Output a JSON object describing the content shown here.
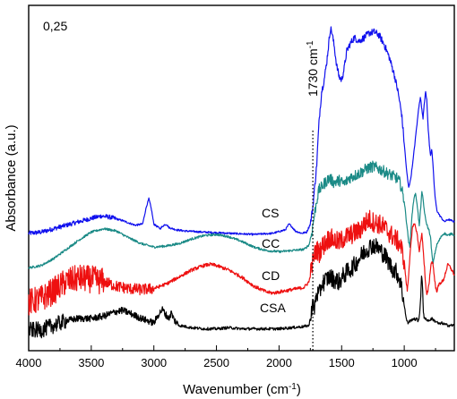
{
  "chart_data": {
    "type": "line",
    "xlabel": "Wavenumber (cm",
    "xlabel_sup": "-1",
    "xlabel_suffix": ")",
    "ylabel": "Absorbance (a.u.)",
    "xlim": [
      4000,
      600
    ],
    "x_reversed": true,
    "x_ticks": [
      "4000",
      "3500",
      "3000",
      "2500",
      "2000",
      "1500",
      "1000"
    ],
    "scale_label": "0,25",
    "annotation": {
      "text": "1730 cm",
      "sup": "-1",
      "x": 1730
    },
    "series": [
      {
        "name": "CS",
        "color": "#1010ee",
        "points": [
          [
            4000,
            0.72
          ],
          [
            3900,
            0.73
          ],
          [
            3800,
            0.76
          ],
          [
            3700,
            0.79
          ],
          [
            3600,
            0.82
          ],
          [
            3500,
            0.85
          ],
          [
            3420,
            0.87
          ],
          [
            3350,
            0.86
          ],
          [
            3250,
            0.83
          ],
          [
            3150,
            0.79
          ],
          [
            3090,
            0.8
          ],
          [
            3060,
            0.95
          ],
          [
            3040,
            1.02
          ],
          [
            3020,
            0.93
          ],
          [
            3000,
            0.8
          ],
          [
            2950,
            0.76
          ],
          [
            2920,
            0.79
          ],
          [
            2900,
            0.8
          ],
          [
            2880,
            0.77
          ],
          [
            2820,
            0.75
          ],
          [
            2750,
            0.74
          ],
          [
            2600,
            0.73
          ],
          [
            2400,
            0.72
          ],
          [
            2200,
            0.71
          ],
          [
            2050,
            0.72
          ],
          [
            1950,
            0.75
          ],
          [
            1920,
            0.8
          ],
          [
            1900,
            0.78
          ],
          [
            1870,
            0.74
          ],
          [
            1820,
            0.72
          ],
          [
            1780,
            0.73
          ],
          [
            1750,
            0.8
          ],
          [
            1730,
            0.95
          ],
          [
            1700,
            1.3
          ],
          [
            1680,
            1.7
          ],
          [
            1660,
            1.95
          ],
          [
            1640,
            2.05
          ],
          [
            1620,
            2.2
          ],
          [
            1600,
            2.4
          ],
          [
            1590,
            2.5
          ],
          [
            1580,
            2.48
          ],
          [
            1560,
            2.35
          ],
          [
            1540,
            2.18
          ],
          [
            1520,
            2.08
          ],
          [
            1500,
            2.05
          ],
          [
            1480,
            2.15
          ],
          [
            1460,
            2.3
          ],
          [
            1440,
            2.35
          ],
          [
            1400,
            2.42
          ],
          [
            1360,
            2.39
          ],
          [
            1320,
            2.42
          ],
          [
            1280,
            2.46
          ],
          [
            1240,
            2.47
          ],
          [
            1200,
            2.44
          ],
          [
            1160,
            2.36
          ],
          [
            1120,
            2.25
          ],
          [
            1080,
            2.1
          ],
          [
            1050,
            1.95
          ],
          [
            1020,
            1.75
          ],
          [
            1000,
            1.5
          ],
          [
            980,
            1.25
          ],
          [
            965,
            1.12
          ],
          [
            950,
            1.18
          ],
          [
            930,
            1.35
          ],
          [
            910,
            1.55
          ],
          [
            890,
            1.75
          ],
          [
            880,
            1.85
          ],
          [
            870,
            1.9
          ],
          [
            860,
            1.8
          ],
          [
            850,
            1.72
          ],
          [
            840,
            1.85
          ],
          [
            830,
            1.95
          ],
          [
            820,
            1.88
          ],
          [
            810,
            1.65
          ],
          [
            800,
            1.5
          ],
          [
            790,
            1.4
          ],
          [
            780,
            1.45
          ],
          [
            770,
            1.3
          ],
          [
            755,
            1.05
          ],
          [
            740,
            0.92
          ],
          [
            720,
            0.88
          ],
          [
            700,
            0.85
          ],
          [
            680,
            0.82
          ],
          [
            650,
            0.84
          ],
          [
            620,
            0.83
          ],
          [
            600,
            0.82
          ]
        ]
      },
      {
        "name": "CC",
        "color": "#1a8a86",
        "points": [
          [
            4000,
            0.42
          ],
          [
            3900,
            0.44
          ],
          [
            3800,
            0.5
          ],
          [
            3700,
            0.58
          ],
          [
            3600,
            0.66
          ],
          [
            3500,
            0.73
          ],
          [
            3400,
            0.76
          ],
          [
            3300,
            0.74
          ],
          [
            3200,
            0.68
          ],
          [
            3100,
            0.63
          ],
          [
            3000,
            0.6
          ],
          [
            2900,
            0.61
          ],
          [
            2800,
            0.63
          ],
          [
            2700,
            0.67
          ],
          [
            2600,
            0.7
          ],
          [
            2500,
            0.71
          ],
          [
            2400,
            0.69
          ],
          [
            2300,
            0.65
          ],
          [
            2200,
            0.6
          ],
          [
            2100,
            0.57
          ],
          [
            2000,
            0.56
          ],
          [
            1900,
            0.57
          ],
          [
            1800,
            0.58
          ],
          [
            1760,
            0.62
          ],
          [
            1740,
            0.72
          ],
          [
            1720,
            0.86
          ],
          [
            1700,
            1.0
          ],
          [
            1680,
            1.1
          ],
          [
            1660,
            1.12
          ],
          [
            1640,
            1.15
          ],
          [
            1600,
            1.2
          ],
          [
            1560,
            1.16
          ],
          [
            1520,
            1.18
          ],
          [
            1480,
            1.15
          ],
          [
            1440,
            1.2
          ],
          [
            1400,
            1.22
          ],
          [
            1360,
            1.24
          ],
          [
            1300,
            1.28
          ],
          [
            1250,
            1.3
          ],
          [
            1200,
            1.28
          ],
          [
            1150,
            1.25
          ],
          [
            1100,
            1.22
          ],
          [
            1060,
            1.2
          ],
          [
            1030,
            1.15
          ],
          [
            1000,
            1.0
          ],
          [
            980,
            0.8
          ],
          [
            965,
            0.65
          ],
          [
            955,
            0.6
          ],
          [
            945,
            0.78
          ],
          [
            930,
            0.96
          ],
          [
            920,
            1.04
          ],
          [
            910,
            1.06
          ],
          [
            900,
            1.0
          ],
          [
            890,
            0.9
          ],
          [
            880,
            0.78
          ],
          [
            870,
            0.92
          ],
          [
            860,
            1.08
          ],
          [
            850,
            1.02
          ],
          [
            840,
            0.92
          ],
          [
            830,
            0.84
          ],
          [
            815,
            0.78
          ],
          [
            800,
            0.74
          ],
          [
            790,
            0.68
          ],
          [
            780,
            0.55
          ],
          [
            770,
            0.45
          ],
          [
            760,
            0.52
          ],
          [
            740,
            0.62
          ],
          [
            720,
            0.66
          ],
          [
            700,
            0.7
          ],
          [
            680,
            0.72
          ],
          [
            650,
            0.7
          ],
          [
            620,
            0.72
          ],
          [
            600,
            0.7
          ]
        ]
      },
      {
        "name": "CD",
        "color": "#ee1010",
        "points": [
          [
            4000,
            0.12
          ],
          [
            3900,
            0.15
          ],
          [
            3800,
            0.22
          ],
          [
            3700,
            0.3
          ],
          [
            3600,
            0.33
          ],
          [
            3500,
            0.32
          ],
          [
            3400,
            0.3
          ],
          [
            3300,
            0.26
          ],
          [
            3200,
            0.24
          ],
          [
            3100,
            0.23
          ],
          [
            3000,
            0.24
          ],
          [
            2900,
            0.28
          ],
          [
            2800,
            0.34
          ],
          [
            2700,
            0.4
          ],
          [
            2600,
            0.44
          ],
          [
            2550,
            0.45
          ],
          [
            2500,
            0.44
          ],
          [
            2400,
            0.4
          ],
          [
            2300,
            0.34
          ],
          [
            2200,
            0.26
          ],
          [
            2100,
            0.21
          ],
          [
            2050,
            0.2
          ],
          [
            2000,
            0.21
          ],
          [
            1900,
            0.23
          ],
          [
            1800,
            0.25
          ],
          [
            1760,
            0.3
          ],
          [
            1740,
            0.42
          ],
          [
            1720,
            0.52
          ],
          [
            1700,
            0.58
          ],
          [
            1680,
            0.55
          ],
          [
            1660,
            0.6
          ],
          [
            1640,
            0.62
          ],
          [
            1600,
            0.68
          ],
          [
            1560,
            0.66
          ],
          [
            1520,
            0.64
          ],
          [
            1480,
            0.68
          ],
          [
            1440,
            0.7
          ],
          [
            1400,
            0.72
          ],
          [
            1360,
            0.74
          ],
          [
            1320,
            0.8
          ],
          [
            1280,
            0.84
          ],
          [
            1250,
            0.82
          ],
          [
            1200,
            0.8
          ],
          [
            1150,
            0.76
          ],
          [
            1100,
            0.7
          ],
          [
            1060,
            0.66
          ],
          [
            1030,
            0.62
          ],
          [
            1000,
            0.48
          ],
          [
            985,
            0.3
          ],
          [
            975,
            0.22
          ],
          [
            965,
            0.35
          ],
          [
            950,
            0.6
          ],
          [
            935,
            0.76
          ],
          [
            920,
            0.8
          ],
          [
            905,
            0.76
          ],
          [
            890,
            0.66
          ],
          [
            880,
            0.55
          ],
          [
            870,
            0.65
          ],
          [
            860,
            0.72
          ],
          [
            850,
            0.6
          ],
          [
            840,
            0.45
          ],
          [
            830,
            0.28
          ],
          [
            820,
            0.18
          ],
          [
            810,
            0.22
          ],
          [
            800,
            0.3
          ],
          [
            790,
            0.42
          ],
          [
            780,
            0.48
          ],
          [
            770,
            0.45
          ],
          [
            760,
            0.35
          ],
          [
            750,
            0.25
          ],
          [
            740,
            0.22
          ],
          [
            720,
            0.28
          ],
          [
            700,
            0.3
          ],
          [
            690,
            0.3
          ],
          [
            670,
            0.38
          ],
          [
            650,
            0.45
          ],
          [
            630,
            0.42
          ],
          [
            610,
            0.38
          ],
          [
            600,
            0.36
          ]
        ]
      },
      {
        "name": "CSA",
        "color": "#000000",
        "points": [
          [
            4000,
            -0.12
          ],
          [
            3900,
            -0.12
          ],
          [
            3800,
            -0.08
          ],
          [
            3700,
            -0.04
          ],
          [
            3600,
            -0.02
          ],
          [
            3500,
            -0.02
          ],
          [
            3400,
            0.0
          ],
          [
            3300,
            0.04
          ],
          [
            3250,
            0.05
          ],
          [
            3200,
            0.03
          ],
          [
            3100,
            -0.02
          ],
          [
            3000,
            -0.06
          ],
          [
            2960,
            0.02
          ],
          [
            2930,
            0.06
          ],
          [
            2910,
            0.02
          ],
          [
            2880,
            -0.02
          ],
          [
            2860,
            0.03
          ],
          [
            2840,
            -0.03
          ],
          [
            2800,
            -0.08
          ],
          [
            2700,
            -0.1
          ],
          [
            2600,
            -0.11
          ],
          [
            2500,
            -0.11
          ],
          [
            2400,
            -0.1
          ],
          [
            2300,
            -0.11
          ],
          [
            2200,
            -0.11
          ],
          [
            2100,
            -0.11
          ],
          [
            2000,
            -0.11
          ],
          [
            1900,
            -0.1
          ],
          [
            1800,
            -0.09
          ],
          [
            1760,
            -0.08
          ],
          [
            1745,
            0.02
          ],
          [
            1735,
            0.1
          ],
          [
            1720,
            0.05
          ],
          [
            1700,
            0.2
          ],
          [
            1680,
            0.18
          ],
          [
            1660,
            0.28
          ],
          [
            1640,
            0.3
          ],
          [
            1600,
            0.34
          ],
          [
            1560,
            0.32
          ],
          [
            1520,
            0.3
          ],
          [
            1480,
            0.36
          ],
          [
            1440,
            0.4
          ],
          [
            1400,
            0.44
          ],
          [
            1360,
            0.5
          ],
          [
            1320,
            0.56
          ],
          [
            1280,
            0.6
          ],
          [
            1250,
            0.62
          ],
          [
            1220,
            0.6
          ],
          [
            1180,
            0.56
          ],
          [
            1140,
            0.5
          ],
          [
            1100,
            0.42
          ],
          [
            1060,
            0.38
          ],
          [
            1030,
            0.3
          ],
          [
            1000,
            0.1
          ],
          [
            985,
            -0.02
          ],
          [
            970,
            -0.06
          ],
          [
            955,
            -0.04
          ],
          [
            945,
            -0.04
          ],
          [
            930,
            -0.02
          ],
          [
            915,
            -0.03
          ],
          [
            900,
            -0.02
          ],
          [
            890,
            -0.05
          ],
          [
            880,
            0.0
          ],
          [
            870,
            0.12
          ],
          [
            862,
            0.35
          ],
          [
            855,
            0.3
          ],
          [
            848,
            0.05
          ],
          [
            840,
            -0.02
          ],
          [
            820,
            -0.03
          ],
          [
            800,
            -0.04
          ],
          [
            780,
            -0.02
          ],
          [
            760,
            -0.04
          ],
          [
            740,
            -0.05
          ],
          [
            720,
            -0.07
          ],
          [
            700,
            -0.06
          ],
          [
            680,
            -0.07
          ],
          [
            650,
            -0.08
          ],
          [
            620,
            -0.08
          ],
          [
            600,
            -0.08
          ]
        ]
      }
    ]
  }
}
